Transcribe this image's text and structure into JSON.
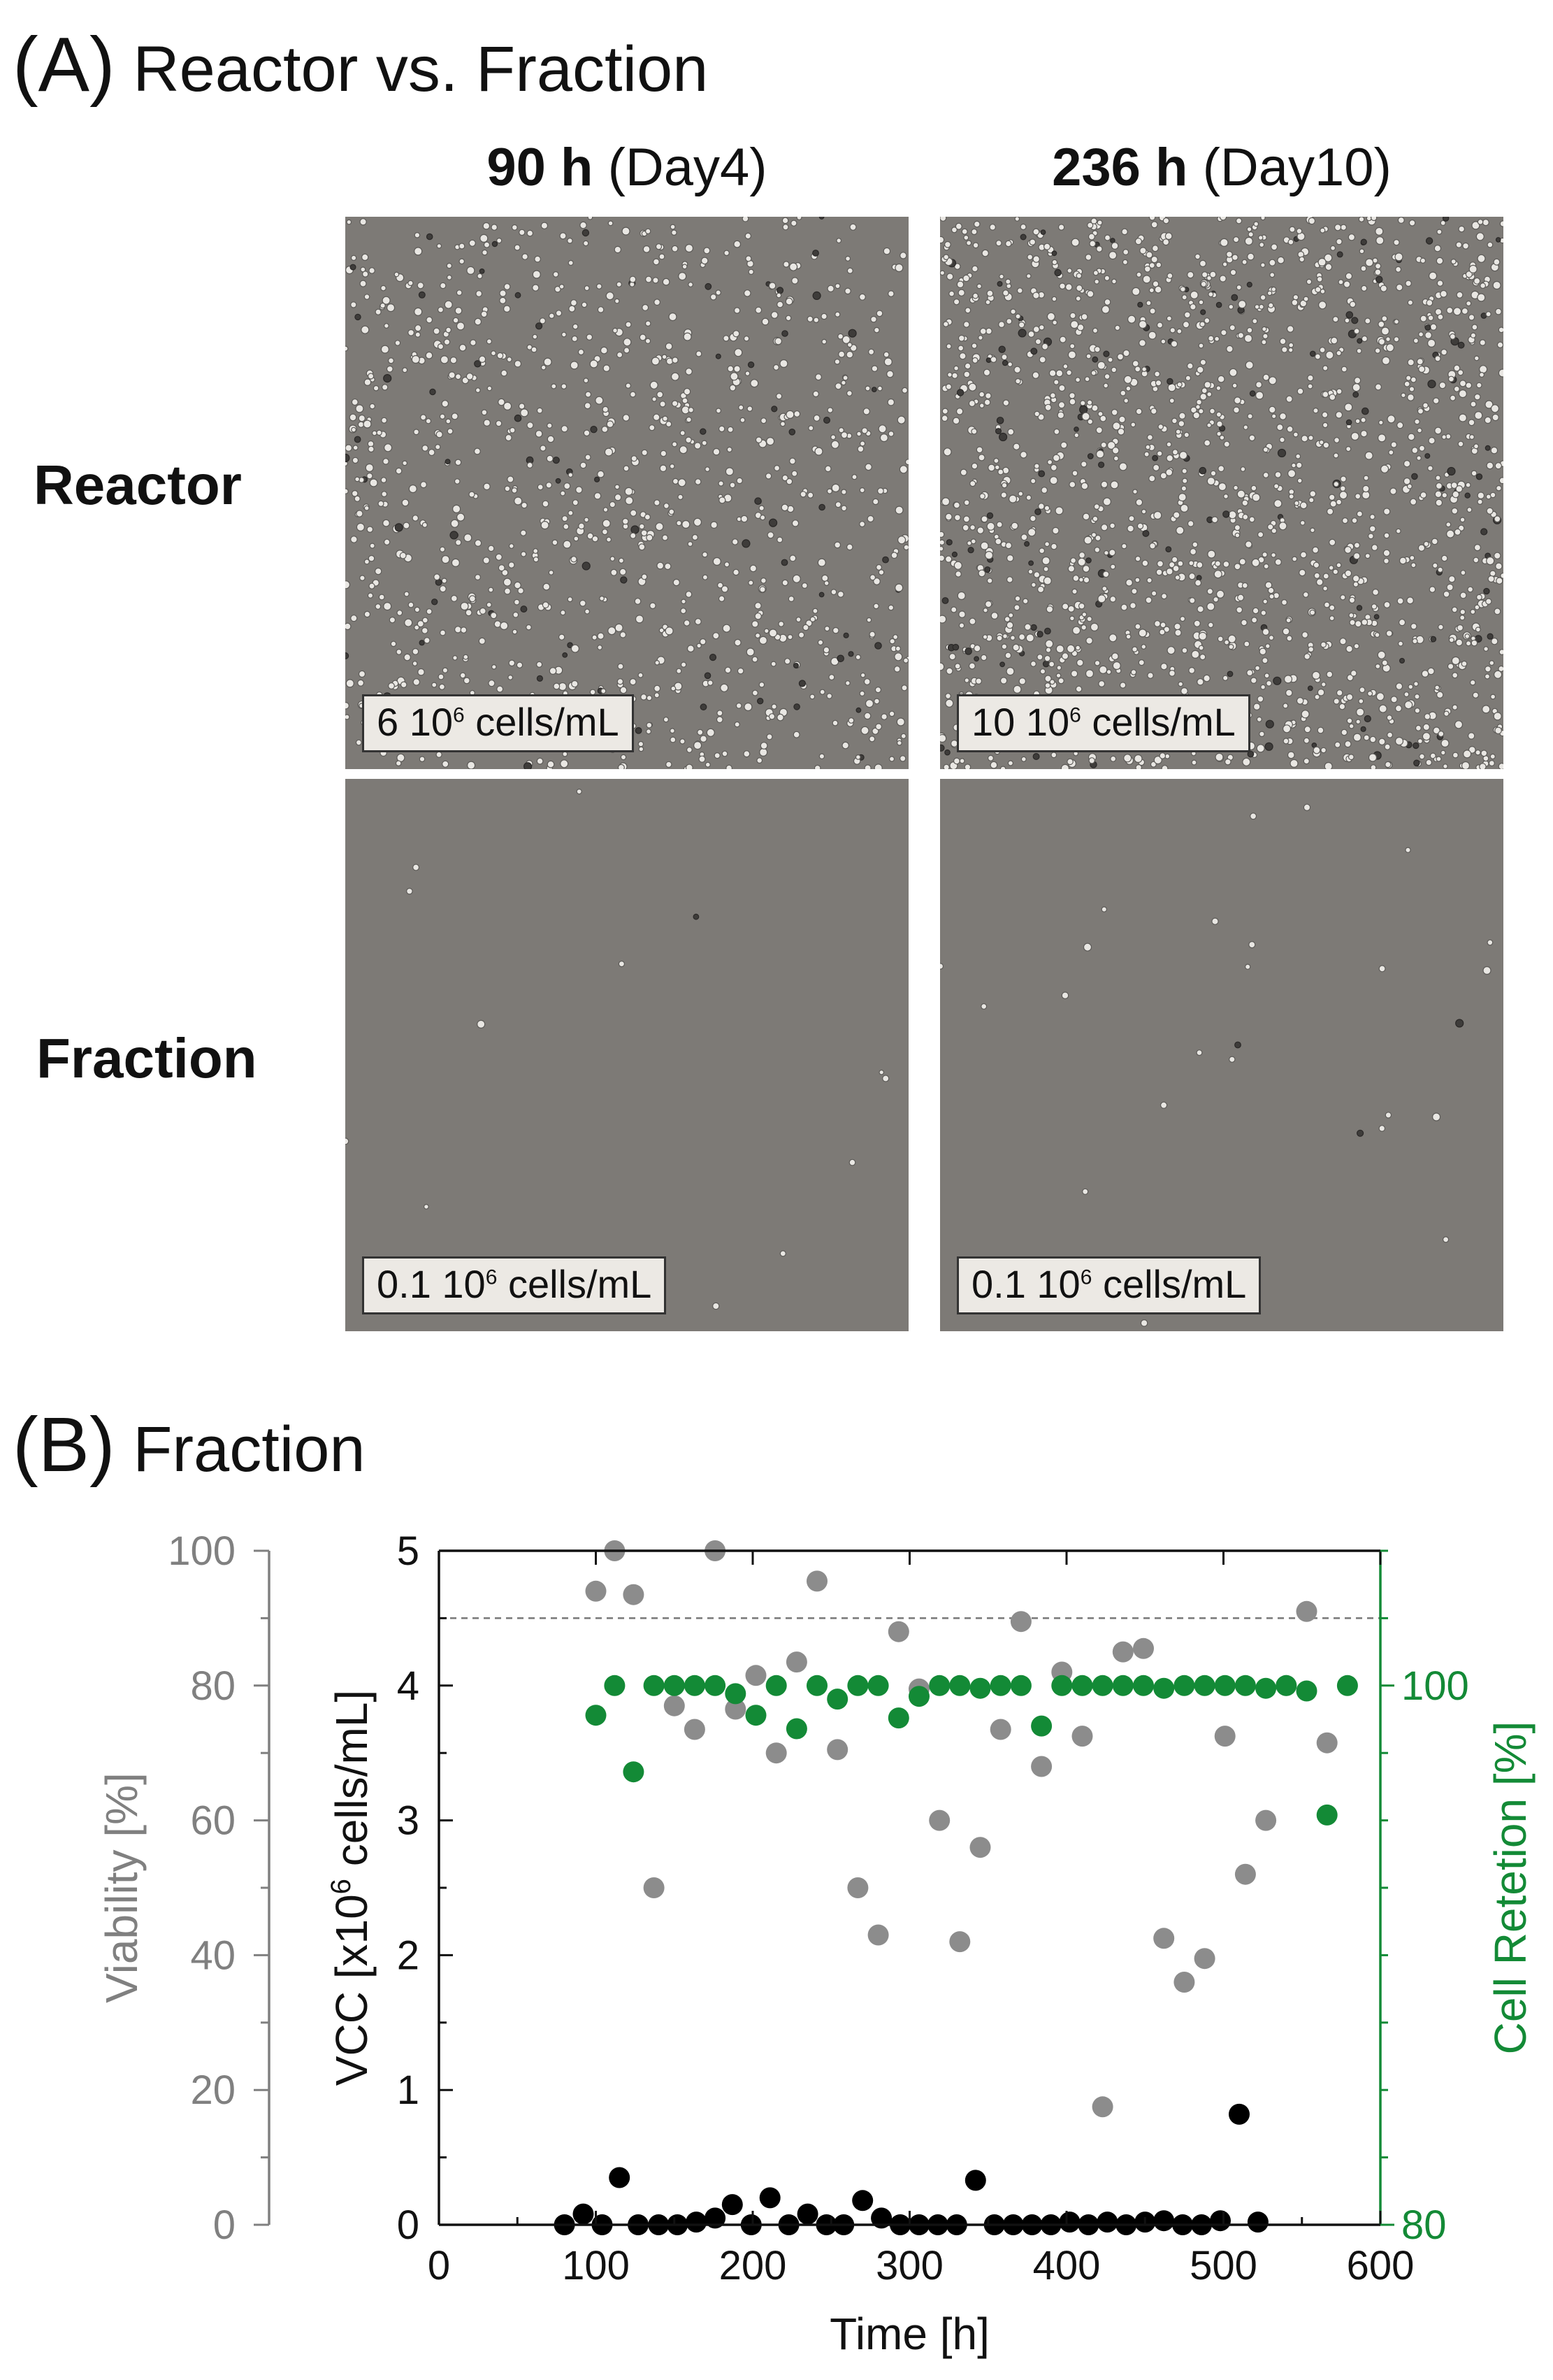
{
  "panel_a": {
    "tag": "(A)",
    "title": "Reactor vs. Fraction",
    "columns": [
      {
        "bold": "90 h",
        "rest": " (Day4)"
      },
      {
        "bold": "236 h",
        "rest": " (Day10)"
      }
    ],
    "rows": [
      "Reactor",
      "Fraction"
    ],
    "labels": {
      "r_90": {
        "num": "6 10",
        "exp": "6",
        "unit": " cells/mL"
      },
      "r_236": {
        "num": "10 10",
        "exp": "6",
        "unit": " cells/mL"
      },
      "f_90": {
        "num": "0.1 10",
        "exp": "6",
        "unit": " cells/mL"
      },
      "f_236": {
        "num": "0.1 10",
        "exp": "6",
        "unit": " cells/mL"
      }
    }
  },
  "panel_b": {
    "tag": "(B)",
    "title": "Fraction"
  },
  "chart_data": {
    "type": "scatter",
    "xlabel": "Time [h]",
    "xlim": [
      0,
      600
    ],
    "xticks": [
      0,
      100,
      200,
      300,
      400,
      500,
      600
    ],
    "axes": {
      "vcc": {
        "label_pre": "VCC [x10",
        "label_exp": "6",
        "label_post": " cells/mL]",
        "lim": [
          0,
          5
        ],
        "ticks": [
          0,
          1,
          2,
          3,
          4,
          5
        ],
        "color": "#111111"
      },
      "viability": {
        "label": "Viability [%]",
        "lim": [
          0,
          100
        ],
        "ticks": [
          0,
          20,
          40,
          60,
          80,
          100
        ],
        "color": "#808080"
      },
      "retention": {
        "label": "Cell Retetion [%]",
        "lim": [
          80,
          105
        ],
        "ticks": [
          80,
          100
        ],
        "color": "#138a36"
      }
    },
    "reference_line": {
      "axis": "vcc",
      "value": 4.5
    },
    "series": [
      {
        "axis": "viability",
        "color": "#8c8c8c",
        "x": [
          100,
          112,
          124,
          137,
          150,
          163,
          176,
          189,
          202,
          215,
          228,
          241,
          254,
          267,
          280,
          293,
          306,
          319,
          332,
          345,
          358,
          371,
          384,
          397,
          410,
          423,
          436,
          449,
          462,
          475,
          488,
          501,
          514,
          527,
          540,
          553,
          566
        ],
        "y": [
          94,
          100,
          93.5,
          50,
          77,
          73.5,
          100,
          76.5,
          81.5,
          70,
          83.5,
          95.5,
          70.5,
          50,
          43,
          88,
          79.5,
          60,
          42,
          56,
          73.5,
          89.5,
          68,
          82,
          72.5,
          17.5,
          85,
          85.5,
          42.5,
          36,
          39.5,
          72.5,
          52,
          60,
          80,
          91,
          71.5
        ]
      },
      {
        "axis": "retention",
        "color": "#138a36",
        "x": [
          100,
          112,
          124,
          137,
          150,
          163,
          176,
          189,
          202,
          215,
          228,
          241,
          254,
          267,
          280,
          293,
          306,
          319,
          332,
          345,
          358,
          371,
          384,
          397,
          410,
          423,
          436,
          449,
          462,
          475,
          488,
          501,
          514,
          527,
          540,
          553,
          566,
          579
        ],
        "y": [
          98.9,
          100,
          96.8,
          100,
          100,
          100,
          100,
          99.7,
          98.9,
          100,
          98.4,
          100,
          99.5,
          100,
          100,
          98.8,
          99.6,
          100,
          100,
          99.9,
          100,
          100,
          98.5,
          100,
          100,
          100,
          100,
          100,
          99.9,
          100,
          100,
          100,
          100,
          99.9,
          100,
          99.8,
          95.2,
          100
        ]
      },
      {
        "axis": "vcc",
        "color": "#000000",
        "x": [
          80,
          92,
          104,
          115,
          127,
          140,
          152,
          164,
          176,
          187,
          199,
          211,
          223,
          235,
          247,
          258,
          270,
          282,
          294,
          306,
          318,
          330,
          342,
          354,
          366,
          378,
          390,
          402,
          414,
          426,
          438,
          450,
          462,
          474,
          486,
          498,
          510,
          522
        ],
        "y": [
          0,
          0.08,
          0,
          0.35,
          0,
          0,
          0,
          0.02,
          0.05,
          0.15,
          0,
          0.2,
          0,
          0.08,
          0,
          0,
          0.18,
          0.05,
          0,
          0,
          0,
          0,
          0.33,
          0,
          0,
          0,
          0,
          0.02,
          0,
          0.02,
          0,
          0.02,
          0.03,
          0,
          0,
          0.03,
          0.82,
          0.02
        ]
      }
    ]
  }
}
